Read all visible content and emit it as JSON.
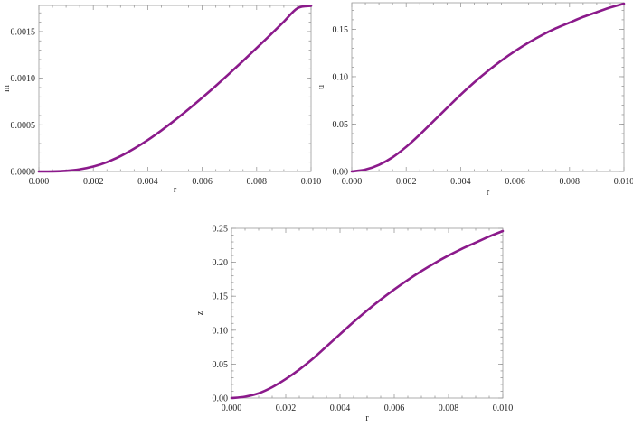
{
  "colors": {
    "curve": "#8B1A8B",
    "frame": "#9a9a9a",
    "text": "#222222"
  },
  "chart_data": [
    {
      "type": "line",
      "title": "",
      "xlabel": "r",
      "ylabel": "m",
      "xlim": [
        0,
        0.01
      ],
      "ylim": [
        0,
        0.00178
      ],
      "grid": false,
      "x_ticks": [
        "0.000",
        "0.002",
        "0.004",
        "0.006",
        "0.008",
        "0.010"
      ],
      "y_ticks": [
        "0.0000",
        "0.0005",
        "0.0010",
        "0.0015"
      ],
      "series": [
        {
          "x": [
            0,
            0.0005,
            0.001,
            0.0015,
            0.002,
            0.0025,
            0.003,
            0.0035,
            0.004,
            0.0045,
            0.005,
            0.0055,
            0.006,
            0.0065,
            0.007,
            0.0075,
            0.008,
            0.0085,
            0.009,
            0.0095,
            0.01
          ],
          "y": [
            0,
            1e-06,
            7e-06,
            2.3e-05,
            5.3e-05,
            0.0001,
            0.000165,
            0.000245,
            0.000337,
            0.00044,
            0.000551,
            0.000668,
            0.000791,
            0.000918,
            0.00105,
            0.001185,
            0.001323,
            0.001463,
            0.001606,
            0.00175,
            0.001775
          ]
        }
      ]
    },
    {
      "type": "line",
      "title": "",
      "xlabel": "r",
      "ylabel": "u",
      "xlim": [
        0,
        0.01
      ],
      "ylim": [
        0,
        0.178
      ],
      "grid": false,
      "x_ticks": [
        "0.000",
        "0.002",
        "0.004",
        "0.006",
        "0.008",
        "0.010"
      ],
      "y_ticks": [
        "0.00",
        "0.05",
        "0.10",
        "0.15"
      ],
      "series": [
        {
          "x": [
            0,
            0.0005,
            0.001,
            0.0015,
            0.002,
            0.0025,
            0.003,
            0.0035,
            0.004,
            0.0045,
            0.005,
            0.0055,
            0.006,
            0.0065,
            0.007,
            0.0075,
            0.008,
            0.0085,
            0.009,
            0.0095,
            0.01
          ],
          "y": [
            0,
            0.002,
            0.007,
            0.015,
            0.026,
            0.039,
            0.053,
            0.067,
            0.081,
            0.094,
            0.106,
            0.117,
            0.127,
            0.136,
            0.144,
            0.151,
            0.157,
            0.163,
            0.168,
            0.173,
            0.177
          ]
        }
      ]
    },
    {
      "type": "line",
      "title": "",
      "xlabel": "r",
      "ylabel": "z",
      "xlim": [
        0,
        0.01
      ],
      "ylim": [
        0,
        0.25
      ],
      "grid": false,
      "x_ticks": [
        "0.000",
        "0.002",
        "0.004",
        "0.006",
        "0.008",
        "0.010"
      ],
      "y_ticks": [
        "0.00",
        "0.05",
        "0.10",
        "0.15",
        "0.20",
        "0.25"
      ],
      "series": [
        {
          "x": [
            0,
            0.0005,
            0.001,
            0.0015,
            0.002,
            0.0025,
            0.003,
            0.0035,
            0.004,
            0.0045,
            0.005,
            0.0055,
            0.006,
            0.0065,
            0.007,
            0.0075,
            0.008,
            0.0085,
            0.009,
            0.0095,
            0.01
          ],
          "y": [
            0,
            0.002,
            0.007,
            0.016,
            0.028,
            0.042,
            0.058,
            0.076,
            0.094,
            0.112,
            0.129,
            0.145,
            0.16,
            0.174,
            0.187,
            0.199,
            0.21,
            0.22,
            0.229,
            0.238,
            0.246
          ]
        }
      ]
    }
  ]
}
